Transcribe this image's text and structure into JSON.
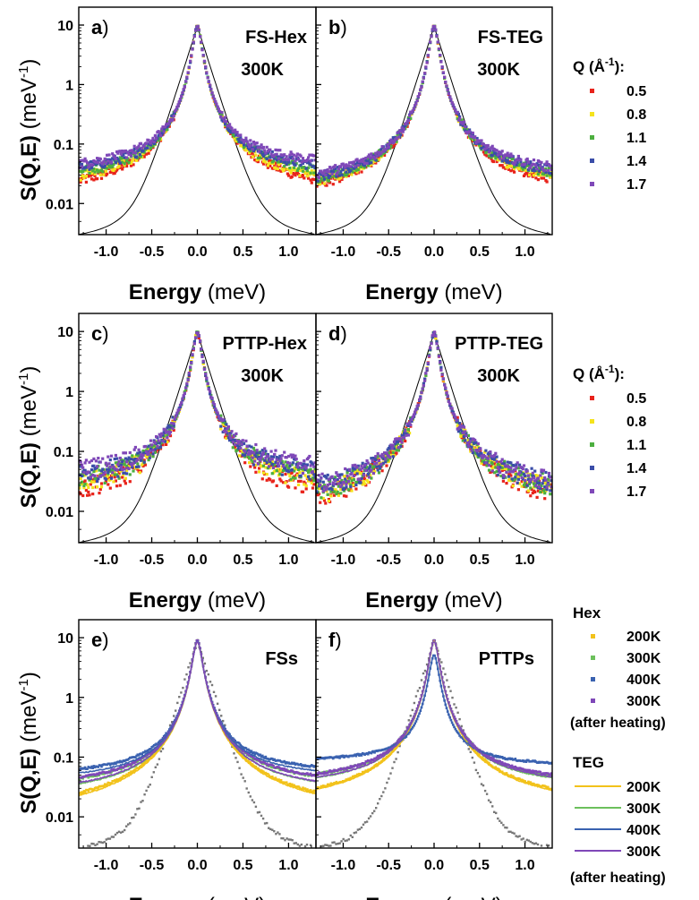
{
  "chart_data": [
    {
      "type": "scatter",
      "panel_label": "a",
      "annotation": [
        "FS-Hex",
        "300K"
      ],
      "xlabel": "Energy",
      "xunit": "(meV)",
      "ylabel": "S(Q,E)",
      "yunit": "(meV-1)",
      "xlim": [
        -1.3,
        1.3
      ],
      "ylim": [
        0.003,
        20
      ],
      "yscale": "log",
      "xticks": [
        -1.0,
        -0.5,
        0.0,
        0.5,
        1.0
      ],
      "xticklabels": [
        "-1.0",
        "-0.5",
        "0.0",
        "0.5",
        "1.0"
      ],
      "yticks": [
        0.01,
        0.1,
        1,
        10
      ],
      "yticklabels": [
        "0.01",
        "0.1",
        "1",
        "10"
      ],
      "series": [
        {
          "name": "0.5",
          "color": "#e8231b",
          "peak": 9.5,
          "tails": [
            0.015,
            0.016
          ]
        },
        {
          "name": "0.8",
          "color": "#f5e31c",
          "peak": 9.5,
          "tails": [
            0.021,
            0.022
          ]
        },
        {
          "name": "1.1",
          "color": "#4caf3f",
          "peak": 9.5,
          "tails": [
            0.027,
            0.029
          ]
        },
        {
          "name": "1.4",
          "color": "#3a4da8",
          "peak": 9.5,
          "tails": [
            0.034,
            0.037
          ]
        },
        {
          "name": "1.7",
          "color": "#7f48b8",
          "peak": 9.5,
          "tails": [
            0.042,
            0.048
          ]
        }
      ],
      "resolution": {
        "color": "#000000",
        "peak": 9.5
      }
    },
    {
      "type": "scatter",
      "panel_label": "b",
      "annotation": [
        "FS-TEG",
        "300K"
      ],
      "xlabel": "Energy",
      "xunit": "(meV)",
      "xlim": [
        -1.3,
        1.3
      ],
      "ylim": [
        0.003,
        20
      ],
      "yscale": "log",
      "xticks": [
        -1.0,
        -0.5,
        0.0,
        0.5,
        1.0
      ],
      "xticklabels": [
        "-1.0",
        "-0.5",
        "0.0",
        "0.5",
        "1.0"
      ],
      "series": [
        {
          "name": "0.5",
          "color": "#e8231b",
          "peak": 9.5,
          "tails": [
            0.011,
            0.017
          ]
        },
        {
          "name": "0.8",
          "color": "#f5e31c",
          "peak": 9.5,
          "tails": [
            0.014,
            0.021
          ]
        },
        {
          "name": "1.1",
          "color": "#4caf3f",
          "peak": 9.5,
          "tails": [
            0.017,
            0.025
          ]
        },
        {
          "name": "1.4",
          "color": "#3a4da8",
          "peak": 9.5,
          "tails": [
            0.02,
            0.029
          ]
        },
        {
          "name": "1.7",
          "color": "#7f48b8",
          "peak": 9.5,
          "tails": [
            0.024,
            0.033
          ]
        }
      ],
      "resolution": {
        "color": "#000000",
        "peak": 9.5
      }
    },
    {
      "type": "scatter",
      "panel_label": "c",
      "annotation": [
        "PTTP-Hex",
        "300K"
      ],
      "xlabel": "Energy",
      "xunit": "(meV)",
      "ylabel": "S(Q,E)",
      "yunit": "(meV-1)",
      "xlim": [
        -1.3,
        1.3
      ],
      "ylim": [
        0.003,
        20
      ],
      "yscale": "log",
      "xticks": [
        -1.0,
        -0.5,
        0.0,
        0.5,
        1.0
      ],
      "xticklabels": [
        "-1.0",
        "-0.5",
        "0.0",
        "0.5",
        "1.0"
      ],
      "yticks": [
        0.01,
        0.1,
        1,
        10
      ],
      "yticklabels": [
        "0.01",
        "0.1",
        "1",
        "10"
      ],
      "series": [
        {
          "name": "0.5",
          "color": "#e8231b",
          "peak": 9.5,
          "tails": [
            0.014,
            0.017
          ]
        },
        {
          "name": "0.8",
          "color": "#f5e31c",
          "peak": 9.5,
          "tails": [
            0.022,
            0.026
          ]
        },
        {
          "name": "1.1",
          "color": "#4caf3f",
          "peak": 9.5,
          "tails": [
            0.03,
            0.035
          ]
        },
        {
          "name": "1.4",
          "color": "#3a4da8",
          "peak": 9.5,
          "tails": [
            0.037,
            0.043
          ]
        },
        {
          "name": "1.7",
          "color": "#7f48b8",
          "peak": 9.5,
          "tails": [
            0.048,
            0.055
          ]
        }
      ],
      "resolution": {
        "color": "#000000",
        "peak": 9.5
      }
    },
    {
      "type": "scatter",
      "panel_label": "d",
      "annotation": [
        "PTTP-TEG",
        "300K"
      ],
      "xlabel": "Energy",
      "xunit": "(meV)",
      "xlim": [
        -1.3,
        1.3
      ],
      "ylim": [
        0.003,
        20
      ],
      "yscale": "log",
      "xticks": [
        -1.0,
        -0.5,
        0.0,
        0.5,
        1.0
      ],
      "xticklabels": [
        "-1.0",
        "-0.5",
        "0.0",
        "0.5",
        "1.0"
      ],
      "series": [
        {
          "name": "0.5",
          "color": "#e8231b",
          "peak": 9.5,
          "tails": [
            0.007,
            0.012
          ]
        },
        {
          "name": "0.8",
          "color": "#f5e31c",
          "peak": 9.5,
          "tails": [
            0.01,
            0.016
          ]
        },
        {
          "name": "1.1",
          "color": "#4caf3f",
          "peak": 9.5,
          "tails": [
            0.014,
            0.02
          ]
        },
        {
          "name": "1.4",
          "color": "#3a4da8",
          "peak": 9.5,
          "tails": [
            0.018,
            0.024
          ]
        },
        {
          "name": "1.7",
          "color": "#7f48b8",
          "peak": 9.5,
          "tails": [
            0.021,
            0.028
          ]
        }
      ],
      "resolution": {
        "color": "#000000",
        "peak": 9.5
      }
    },
    {
      "type": "scatter",
      "panel_label": "e",
      "annotation": [
        "FSs"
      ],
      "xlabel": "Energy",
      "xunit": "(meV)",
      "ylabel": "S(Q,E)",
      "yunit": "(meV-1)",
      "xlim": [
        -1.3,
        1.3
      ],
      "ylim": [
        0.003,
        20
      ],
      "yscale": "log",
      "xticks": [
        -1.0,
        -0.5,
        0.0,
        0.5,
        1.0
      ],
      "xticklabels": [
        "-1.0",
        "-0.5",
        "0.0",
        "0.5",
        "1.0"
      ],
      "yticks": [
        0.01,
        0.1,
        1,
        10
      ],
      "yticklabels": [
        "0.01",
        "0.1",
        "1",
        "10"
      ],
      "series": [
        {
          "name": "Hex 200K",
          "color": "#f2c21b",
          "style": "points",
          "peak": 9.0,
          "tails": [
            0.014,
            0.014
          ]
        },
        {
          "name": "Hex 300K",
          "color": "#6cc05c",
          "style": "points",
          "peak": 9.0,
          "tails": [
            0.036,
            0.038
          ]
        },
        {
          "name": "Hex 400K",
          "color": "#3a62b0",
          "style": "points",
          "peak": 9.0,
          "tails": [
            0.058,
            0.062
          ]
        },
        {
          "name": "Hex 300K (after heating)",
          "color": "#7f48b8",
          "style": "points",
          "peak": 9.0,
          "tails": [
            0.038,
            0.04
          ]
        },
        {
          "name": "TEG 200K",
          "color": "#f2c21b",
          "style": "line",
          "peak": 8.5,
          "tails": [
            0.012,
            0.013
          ]
        },
        {
          "name": "TEG 300K",
          "color": "#6cc05c",
          "style": "line",
          "peak": 8.5,
          "tails": [
            0.027,
            0.029
          ]
        },
        {
          "name": "TEG 400K",
          "color": "#3a62b0",
          "style": "line",
          "peak": 8.5,
          "tails": [
            0.048,
            0.052
          ]
        },
        {
          "name": "TEG 300K (after heating)",
          "color": "#7f48b8",
          "style": "line",
          "peak": 8.5,
          "tails": [
            0.029,
            0.03
          ]
        }
      ],
      "resolution": {
        "color": "#777777",
        "peak": 9.0
      }
    },
    {
      "type": "scatter",
      "panel_label": "f",
      "annotation": [
        "PTTPs"
      ],
      "xlabel": "Energy",
      "xunit": "(meV)",
      "xlim": [
        -1.3,
        1.3
      ],
      "ylim": [
        0.003,
        20
      ],
      "yscale": "log",
      "xticks": [
        -1.0,
        -0.5,
        0.0,
        0.5,
        1.0
      ],
      "xticklabels": [
        "-1.0",
        "-0.5",
        "0.0",
        "0.5",
        "1.0"
      ],
      "series": [
        {
          "name": "Hex 200K",
          "color": "#f2c21b",
          "style": "points",
          "peak": 9.0,
          "tails": [
            0.02,
            0.018
          ]
        },
        {
          "name": "Hex 300K",
          "color": "#6cc05c",
          "style": "points",
          "peak": 9.0,
          "tails": [
            0.045,
            0.04
          ]
        },
        {
          "name": "Hex 400K",
          "color": "#3a62b0",
          "style": "points",
          "peak": 5.0,
          "tails": [
            0.1,
            0.08
          ]
        },
        {
          "name": "Hex 300K (after heating)",
          "color": "#7f48b8",
          "style": "points",
          "peak": 9.0,
          "tails": [
            0.046,
            0.042
          ]
        },
        {
          "name": "TEG 200K",
          "color": "#f2c21b",
          "style": "line",
          "peak": 8.5,
          "tails": [
            0.019,
            0.017
          ]
        },
        {
          "name": "TEG 300K",
          "color": "#6cc05c",
          "style": "line",
          "peak": 8.5,
          "tails": [
            0.038,
            0.036
          ]
        },
        {
          "name": "TEG 400K",
          "color": "#3a62b0",
          "style": "line",
          "peak": 5.0,
          "tails": [
            0.1,
            0.08
          ]
        },
        {
          "name": "TEG 300K (after heating)",
          "color": "#7f48b8",
          "style": "line",
          "peak": 8.5,
          "tails": [
            0.039,
            0.038
          ]
        }
      ],
      "resolution": {
        "color": "#777777",
        "peak": 9.0
      }
    }
  ],
  "legends": {
    "q_title": "Q (Å-1):",
    "q_values": [
      "0.5",
      "0.8",
      "1.1",
      "1.4",
      "1.7"
    ],
    "q_colors": [
      "#e8231b",
      "#f5e31c",
      "#4caf3f",
      "#3a4da8",
      "#7f48b8"
    ],
    "hex_title": "Hex",
    "teg_title": "TEG",
    "temps": [
      "200K",
      "300K",
      "400K",
      "300K"
    ],
    "after_heating": "(after heating)",
    "temp_colors": [
      "#f2c21b",
      "#6cc05c",
      "#3a62b0",
      "#7f48b8"
    ]
  }
}
